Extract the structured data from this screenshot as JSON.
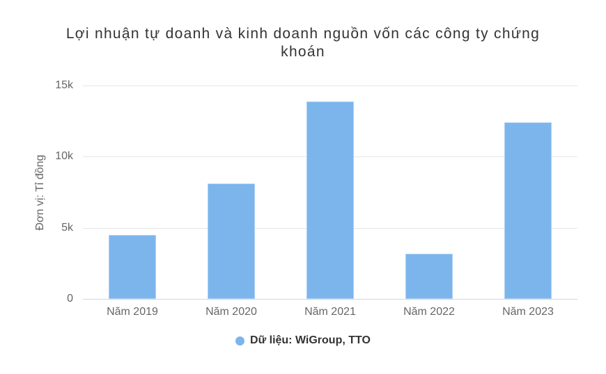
{
  "page": {
    "background": "#ffffff"
  },
  "chart_data": {
    "type": "bar",
    "title": "Lợi nhuận tự doanh và kinh doanh nguồn vốn các công ty chứng khoán",
    "categories": [
      "Năm 2019",
      "Năm 2020",
      "Năm 2021",
      "Năm 2022",
      "Năm 2023"
    ],
    "values": [
      4500,
      8100,
      13900,
      3200,
      12400
    ],
    "xlabel": "",
    "ylabel": "Đơn vị: Tỉ đồng",
    "ylim": [
      0,
      15000
    ],
    "yticks": [
      {
        "value": 0,
        "label": "0"
      },
      {
        "value": 5000,
        "label": "5k"
      },
      {
        "value": 10000,
        "label": "10k"
      },
      {
        "value": 15000,
        "label": "15k"
      }
    ],
    "grid": true,
    "legend": {
      "position": "bottom-center",
      "label": "Dữ liệu: WiGroup, TTO"
    },
    "colors": {
      "bar": "#7cb5ec",
      "grid_line": "#e6e6e6",
      "axis_line": "#ccd6eb",
      "tick_text": "#666666",
      "title_text": "#333333",
      "legend_text": "#333333"
    }
  }
}
